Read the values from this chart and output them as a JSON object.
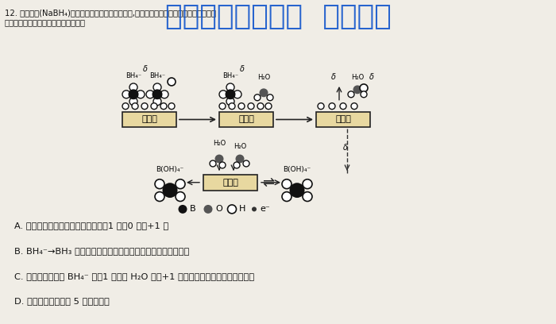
{
  "bg_color": "#f0ede6",
  "title_line1": "12. 硼氢化钠(NaBH₄)是有机反应中常用的强还原剂,其在催化剂作用下与水反应获得氢气的",
  "title_line2": "微观过程如图所示。下列说法错误的是",
  "watermark": "微信公众号关注： 趣找答案",
  "option_A": "A. 转化过程中，氢元素的化合价有－1 价、0 价和+1 价",
  "option_B": "B. BH₄⁻→BH₃ 过程中，既有化学键的断裂，又有化学键的形成",
  "option_C": "C. 总反应的实质为 BH₄⁻ 中－1 价氢与 H₂O 中的+1 价氢发生氧化还原反应生成氢气",
  "option_D": "D. 整个过程中出现了 5 种含硼微粒",
  "legend_B": "B",
  "legend_O": "O",
  "legend_H": "H",
  "legend_e": "e⁻",
  "catalyst_label": "催化剂",
  "label_BH4": "BH₄⁻",
  "label_H2O": "H₂O",
  "label_BOH4": "B(OH)₄⁻",
  "delta": "δ"
}
